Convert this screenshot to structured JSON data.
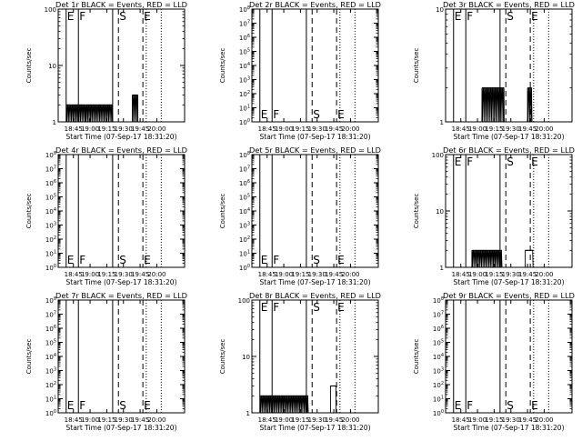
{
  "chart_data": {
    "type": "line",
    "common": {
      "xlabel": "Start Time (07-Sep-17 18:31:20)",
      "ylabel": "Counts/sec",
      "x_tick_labels": [
        "18:45",
        "19:00",
        "19:15",
        "19:30",
        "19:45",
        "20:00"
      ],
      "x_tick_minutes": [
        45,
        60,
        75,
        90,
        105,
        120
      ],
      "x_range_minutes": [
        31.33,
        145.0
      ],
      "marker_lines": [
        {
          "minute": 38.5,
          "style": "solid",
          "letter": "E"
        },
        {
          "minute": 49.5,
          "style": "solid",
          "letter": "F"
        },
        {
          "minute": 80.3,
          "style": "solid",
          "letter": ""
        },
        {
          "minute": 85.5,
          "style": "dashed",
          "letter": "S"
        },
        {
          "minute": 107.5,
          "style": "dashed",
          "letter": "E"
        },
        {
          "minute": 110.5,
          "style": "dotted",
          "letter": ""
        },
        {
          "minute": 124.0,
          "style": "dotted",
          "letter": ""
        }
      ],
      "line_color": "#000000",
      "background": "#ffffff"
    },
    "panels": [
      {
        "title": "Det 1r BLACK = Events, RED = LLD",
        "yscale": "log",
        "ylim": [
          1,
          100
        ],
        "y_tick_labels": [
          "1",
          "10",
          "100"
        ],
        "series": [
          {
            "segments": [
              {
                "x0": 38.8,
                "x1": 56.0,
                "level": 2,
                "style": "spiky"
              },
              {
                "x0": 56.0,
                "x1": 80.3,
                "level": 2,
                "style": "spiky"
              },
              {
                "x0": 98.0,
                "x1": 103.0,
                "level": 3,
                "style": "spiky"
              }
            ]
          }
        ]
      },
      {
        "title": "Det 2r BLACK = Events, RED = LLD",
        "yscale": "log",
        "ylim": [
          1,
          100000000
        ],
        "y_tick_labels": [
          "10^0",
          "10^1",
          "10^2",
          "10^3",
          "10^4",
          "10^5",
          "10^6",
          "10^7",
          "10^8"
        ],
        "series": []
      },
      {
        "title": "Det 3r BLACK = Events, RED = LLD",
        "yscale": "log",
        "ylim": [
          1,
          10
        ],
        "y_tick_labels": [
          "1",
          "10"
        ],
        "series": [
          {
            "segments": [
              {
                "x0": 64.0,
                "x1": 84.0,
                "level": 2,
                "style": "spiky"
              },
              {
                "x0": 105.0,
                "x1": 109.0,
                "level": 2,
                "style": "spiky"
              }
            ]
          }
        ]
      },
      {
        "title": "Det 4r BLACK = Events, RED = LLD",
        "yscale": "log",
        "ylim": [
          1,
          100000000
        ],
        "y_tick_labels": [
          "10^0",
          "10^1",
          "10^2",
          "10^3",
          "10^4",
          "10^5",
          "10^6",
          "10^7",
          "10^8"
        ],
        "series": []
      },
      {
        "title": "Det 5r BLACK = Events, RED = LLD",
        "yscale": "log",
        "ylim": [
          1,
          100000000
        ],
        "y_tick_labels": [
          "10^0",
          "10^1",
          "10^2",
          "10^3",
          "10^4",
          "10^5",
          "10^6",
          "10^7",
          "10^8"
        ],
        "series": []
      },
      {
        "title": "Det 6r BLACK = Events, RED = LLD",
        "yscale": "log",
        "ylim": [
          1,
          100
        ],
        "y_tick_labels": [
          "1",
          "10",
          "100"
        ],
        "series": [
          {
            "segments": [
              {
                "x0": 55.0,
                "x1": 82.0,
                "level": 2,
                "style": "spiky"
              },
              {
                "x0": 103.0,
                "x1": 110.0,
                "level": 2,
                "style": "block"
              }
            ]
          }
        ]
      },
      {
        "title": "Det 7r BLACK = Events, RED = LLD",
        "yscale": "log",
        "ylim": [
          1,
          100000000
        ],
        "y_tick_labels": [
          "10^0",
          "10^1",
          "10^2",
          "10^3",
          "10^4",
          "10^5",
          "10^6",
          "10^7",
          "10^8"
        ],
        "series": []
      },
      {
        "title": "Det 8r BLACK = Events, RED = LLD",
        "yscale": "log",
        "ylim": [
          1,
          100
        ],
        "y_tick_labels": [
          "1",
          "10",
          "100"
        ],
        "series": [
          {
            "segments": [
              {
                "x0": 38.8,
                "x1": 82.0,
                "level": 2,
                "style": "spiky"
              },
              {
                "x0": 102.0,
                "x1": 107.0,
                "level": 3,
                "style": "block"
              }
            ]
          }
        ]
      },
      {
        "title": "Det 9r BLACK = Events, RED = LLD",
        "yscale": "log",
        "ylim": [
          1,
          100000000
        ],
        "y_tick_labels": [
          "10^0",
          "10^1",
          "10^2",
          "10^3",
          "10^4",
          "10^5",
          "10^6",
          "10^7",
          "10^8"
        ],
        "series": []
      }
    ]
  }
}
